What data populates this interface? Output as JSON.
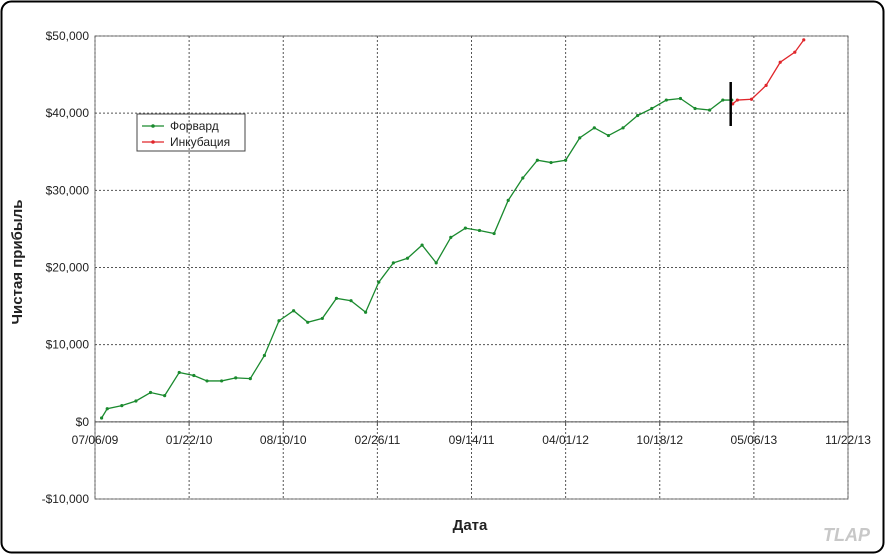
{
  "chart_data": {
    "type": "line",
    "y_label": "Чистая прибыль",
    "x_label": "Дата",
    "watermark": "TLAP",
    "xlim": [
      "07/06/09",
      "11/22/13"
    ],
    "xticks": [
      "07/06/09",
      "01/22/10",
      "08/10/10",
      "02/26/11",
      "09/14/11",
      "04/01/12",
      "10/18/12",
      "05/06/13",
      "11/22/13"
    ],
    "ylim": [
      -10000,
      50000
    ],
    "yticks": [
      {
        "value": -10000,
        "label": "-$10,000"
      },
      {
        "value": 0,
        "label": "$0"
      },
      {
        "value": 10000,
        "label": "$10,000"
      },
      {
        "value": 20000,
        "label": "$20,000"
      },
      {
        "value": 30000,
        "label": "$30,000"
      },
      {
        "value": 40000,
        "label": "$40,000"
      },
      {
        "value": 50000,
        "label": "$50,000"
      }
    ],
    "grid": true,
    "legend": "upper left",
    "series": [
      {
        "name": "Форвард",
        "color": "#1a8a2e",
        "x": [
          "07/20/09",
          "08/01/09",
          "09/01/09",
          "10/01/09",
          "11/01/09",
          "12/01/09",
          "01/01/10",
          "02/01/10",
          "03/01/10",
          "04/01/10",
          "05/01/10",
          "06/01/10",
          "07/01/10",
          "08/01/10",
          "09/01/10",
          "10/01/10",
          "11/01/10",
          "12/01/10",
          "01/01/11",
          "02/01/11",
          "03/01/11",
          "04/01/11",
          "05/01/11",
          "06/01/11",
          "07/01/11",
          "08/01/11",
          "09/01/11",
          "10/01/11",
          "11/01/11",
          "12/01/11",
          "01/01/12",
          "02/01/12",
          "03/01/12",
          "04/01/12",
          "05/01/12",
          "06/01/12",
          "07/01/12",
          "08/01/12",
          "09/01/12",
          "10/01/12",
          "11/01/12",
          "12/01/12",
          "01/01/13",
          "02/01/13",
          "03/01/13",
          "03/20/13"
        ],
        "values": [
          500,
          1700,
          2100,
          2700,
          3800,
          3400,
          6400,
          6000,
          5300,
          5300,
          5700,
          5600,
          8600,
          13100,
          14400,
          12900,
          13400,
          16000,
          15700,
          14200,
          18100,
          20600,
          21200,
          22900,
          20600,
          23900,
          25100,
          24800,
          24400,
          28700,
          31600,
          33900,
          33600,
          33900,
          36800,
          38100,
          37100,
          38100,
          39700,
          40600,
          41700,
          41900,
          40600,
          40400,
          41700,
          41700
        ]
      },
      {
        "name": "Инкубация",
        "color": "#e0262b",
        "x": [
          "03/22/13",
          "04/01/13",
          "05/01/13",
          "06/01/13",
          "07/01/13",
          "08/01/13",
          "08/20/13"
        ],
        "values": [
          41200,
          41700,
          41800,
          43600,
          46600,
          47900,
          49500
        ]
      }
    ]
  }
}
